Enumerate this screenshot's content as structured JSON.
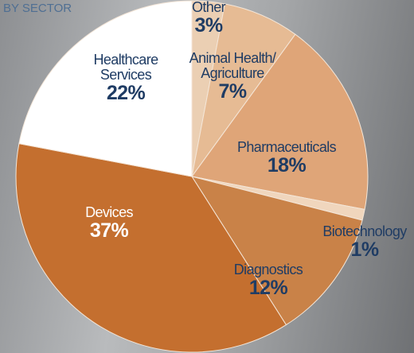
{
  "chart_data": {
    "type": "pie",
    "title": "BY SECTOR",
    "categories": [
      "Other",
      "Animal Health/ Agriculture",
      "Pharmaceuticals",
      "Biotechnology",
      "Diagnostics",
      "Devices",
      "Healthcare Services"
    ],
    "values": [
      3,
      7,
      18,
      1,
      12,
      37,
      22
    ],
    "value_labels": [
      "3%",
      "7%",
      "18%",
      "1%",
      "12%",
      "37%",
      "22%"
    ],
    "colors": [
      "#ebcfb3",
      "#e6bb94",
      "#dfa578",
      "#f0d6bd",
      "#c98248",
      "#c46f2f",
      "#ffffff"
    ]
  }
}
